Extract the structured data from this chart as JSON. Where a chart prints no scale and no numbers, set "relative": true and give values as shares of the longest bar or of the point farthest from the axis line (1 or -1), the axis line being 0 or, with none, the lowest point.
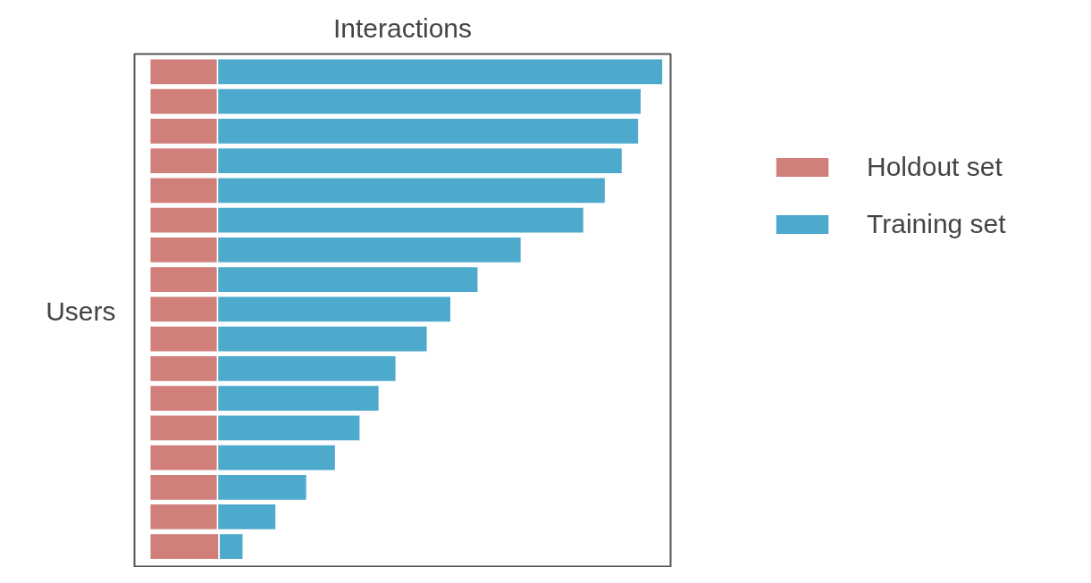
{
  "chart_data": {
    "type": "bar",
    "orientation": "horizontal",
    "stacked": true,
    "relative": true,
    "title": "Interactions",
    "ylabel": "Users",
    "categories": [
      null,
      null,
      null,
      null,
      null,
      null,
      null,
      null,
      null,
      null,
      null,
      null,
      null,
      null,
      null,
      null,
      null
    ],
    "series": [
      {
        "name": "Holdout set",
        "color": "#d17f7a",
        "values": [
          0.132,
          0.132,
          0.132,
          0.132,
          0.132,
          0.132,
          0.132,
          0.132,
          0.132,
          0.132,
          0.132,
          0.132,
          0.132,
          0.132,
          0.132,
          0.132,
          0.135
        ]
      },
      {
        "name": "Training set",
        "color": "#4daacc",
        "values": [
          0.868,
          0.826,
          0.821,
          0.789,
          0.756,
          0.714,
          0.592,
          0.508,
          0.455,
          0.409,
          0.348,
          0.315,
          0.278,
          0.23,
          0.174,
          0.114,
          0.047
        ]
      }
    ],
    "legend": "right",
    "grid": false
  }
}
